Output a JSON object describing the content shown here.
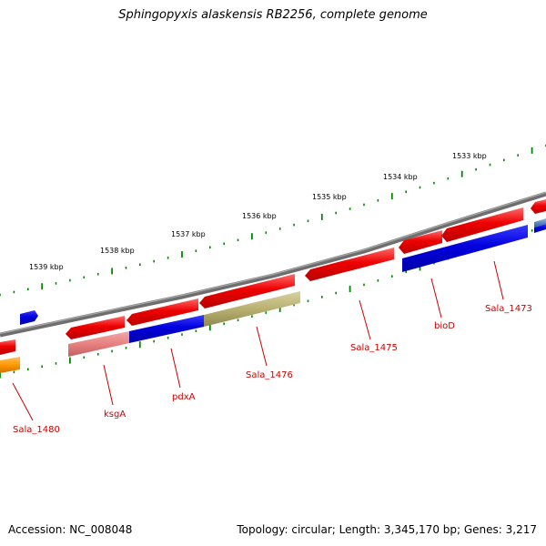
{
  "title": "Sphingopyxis alaskensis RB2256, complete genome",
  "footer": {
    "accession": "Accession: NC_008048",
    "summary": "Topology: circular; Length: 3,345,170 bp; Genes: 3,217"
  },
  "scale_labels": [
    "1539 kbp",
    "1538 kbp",
    "1537 kbp",
    "1536 kbp",
    "1535 kbp",
    "1534 kbp",
    "1533 kbp"
  ],
  "gene_labels": [
    "Sala_1480",
    "ksgA",
    "pdxA",
    "Sala_1476",
    "Sala_1475",
    "bioD",
    "Sala_1473"
  ],
  "colors": {
    "forward_gene": "#ee0000",
    "light_gene": "#e88080",
    "blue_gene": "#0000dd",
    "olive_gene": "#b8b070",
    "orange_gene": "#ff9900",
    "steel_gene": "#5a86c0",
    "backbone": "#7a7a7a",
    "ticks": "#008800",
    "labels": "#cc0000"
  }
}
